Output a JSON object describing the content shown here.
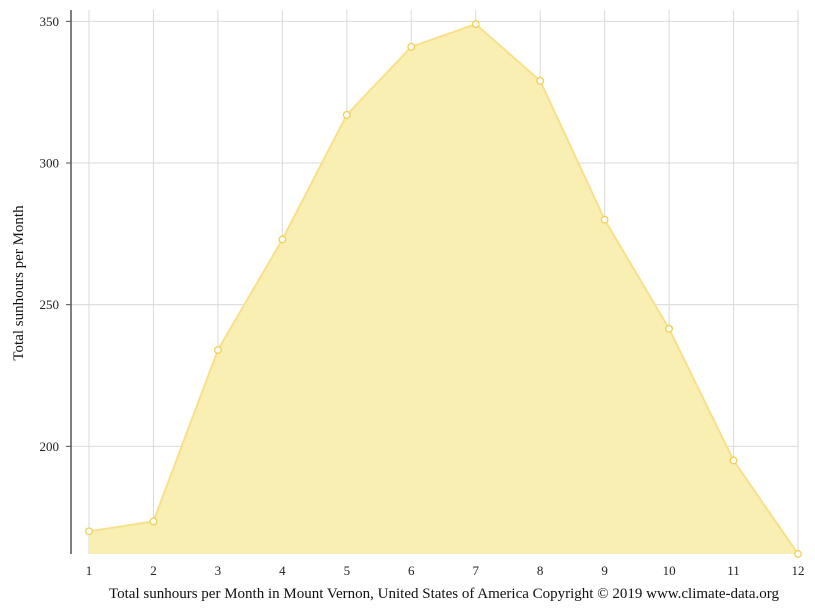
{
  "chart_data": {
    "type": "area",
    "x": [
      1,
      2,
      3,
      4,
      5,
      6,
      7,
      8,
      9,
      10,
      11,
      12
    ],
    "series": [
      {
        "values": [
          170,
          173.5,
          234,
          273,
          317,
          341,
          349,
          329,
          280,
          241.5,
          195,
          162
        ]
      }
    ],
    "xlabel": "",
    "ylabel": "Total sunhours per Month",
    "yticks": [
      200,
      250,
      300,
      350
    ],
    "ylim": [
      162,
      354
    ],
    "xlim": [
      1,
      12
    ],
    "grid": true,
    "fill_color": "#faeeaf",
    "line_color": "#f7e08a",
    "marker_color": "#f0d050"
  },
  "caption": "Total sunhours per Month in Mount Vernon, United States of America Copyright © 2019 www.climate-data.org"
}
